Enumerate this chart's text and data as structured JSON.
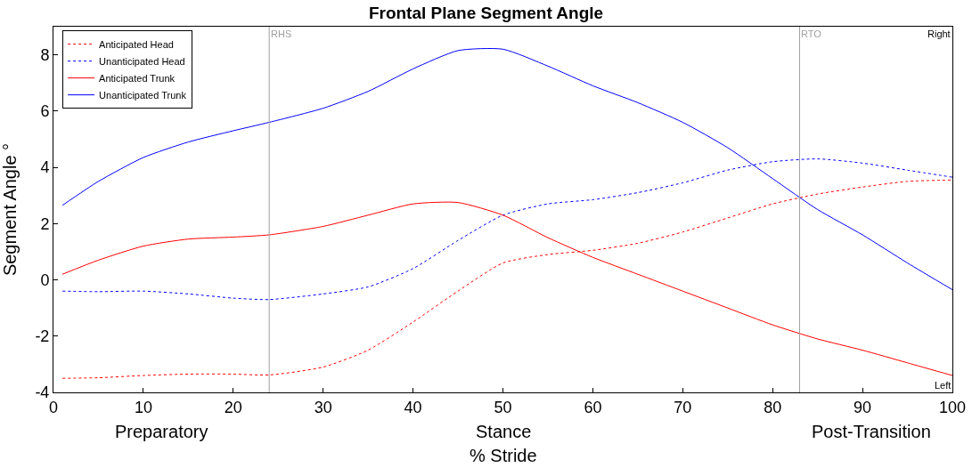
{
  "chart_data": {
    "type": "line",
    "title": "Frontal Plane Segment Angle",
    "xlabel": "% Stride",
    "ylabel": "Segment Angle °",
    "xlim": [
      0,
      100
    ],
    "ylim": [
      -4,
      9
    ],
    "xticks": [
      0,
      10,
      20,
      30,
      40,
      50,
      60,
      70,
      80,
      90,
      100
    ],
    "yticks": [
      -4,
      -2,
      0,
      2,
      4,
      6,
      8
    ],
    "grid": false,
    "legend": "top left",
    "marker": "none",
    "ref_lines": [
      {
        "axis": "x",
        "value": 24,
        "label": "RHS",
        "color": "#a0a0a0"
      },
      {
        "axis": "x",
        "value": 83,
        "label": "RTO",
        "color": "#a0a0a0"
      }
    ],
    "annotations": [
      "Right",
      "Left",
      "Preparatory",
      "Stance",
      "Post-Transition"
    ],
    "x": [
      1,
      5,
      10,
      15,
      20,
      24,
      30,
      35,
      40,
      45,
      50,
      55,
      60,
      65,
      70,
      75,
      80,
      85,
      90,
      95,
      100
    ],
    "series": [
      {
        "name": "Anticipated Head",
        "color": "#ff0000",
        "line_style": "dotted",
        "values": [
          -3.5,
          -3.48,
          -3.4,
          -3.35,
          -3.35,
          -3.38,
          -3.1,
          -2.5,
          -1.5,
          -0.4,
          0.6,
          0.9,
          1.05,
          1.3,
          1.7,
          2.2,
          2.7,
          3.05,
          3.3,
          3.5,
          3.55
        ]
      },
      {
        "name": "Unanticipated Head",
        "color": "#0000ff",
        "line_style": "dotted",
        "values": [
          -0.4,
          -0.42,
          -0.4,
          -0.5,
          -0.65,
          -0.7,
          -0.5,
          -0.25,
          0.4,
          1.4,
          2.3,
          2.7,
          2.85,
          3.1,
          3.45,
          3.9,
          4.2,
          4.3,
          4.15,
          3.9,
          3.65
        ]
      },
      {
        "name": "Anticipated Trunk",
        "color": "#ff0000",
        "line_style": "solid",
        "values": [
          0.2,
          0.7,
          1.2,
          1.45,
          1.52,
          1.6,
          1.9,
          2.3,
          2.7,
          2.75,
          2.3,
          1.5,
          0.8,
          0.2,
          -0.4,
          -1.0,
          -1.6,
          -2.1,
          -2.5,
          -2.95,
          -3.4
        ]
      },
      {
        "name": "Unanticipated Trunk",
        "color": "#0000ff",
        "line_style": "solid",
        "values": [
          2.65,
          3.5,
          4.35,
          4.9,
          5.3,
          5.6,
          6.1,
          6.7,
          7.5,
          8.15,
          8.2,
          7.6,
          6.9,
          6.3,
          5.6,
          4.7,
          3.6,
          2.5,
          1.6,
          0.6,
          -0.35
        ]
      }
    ]
  }
}
